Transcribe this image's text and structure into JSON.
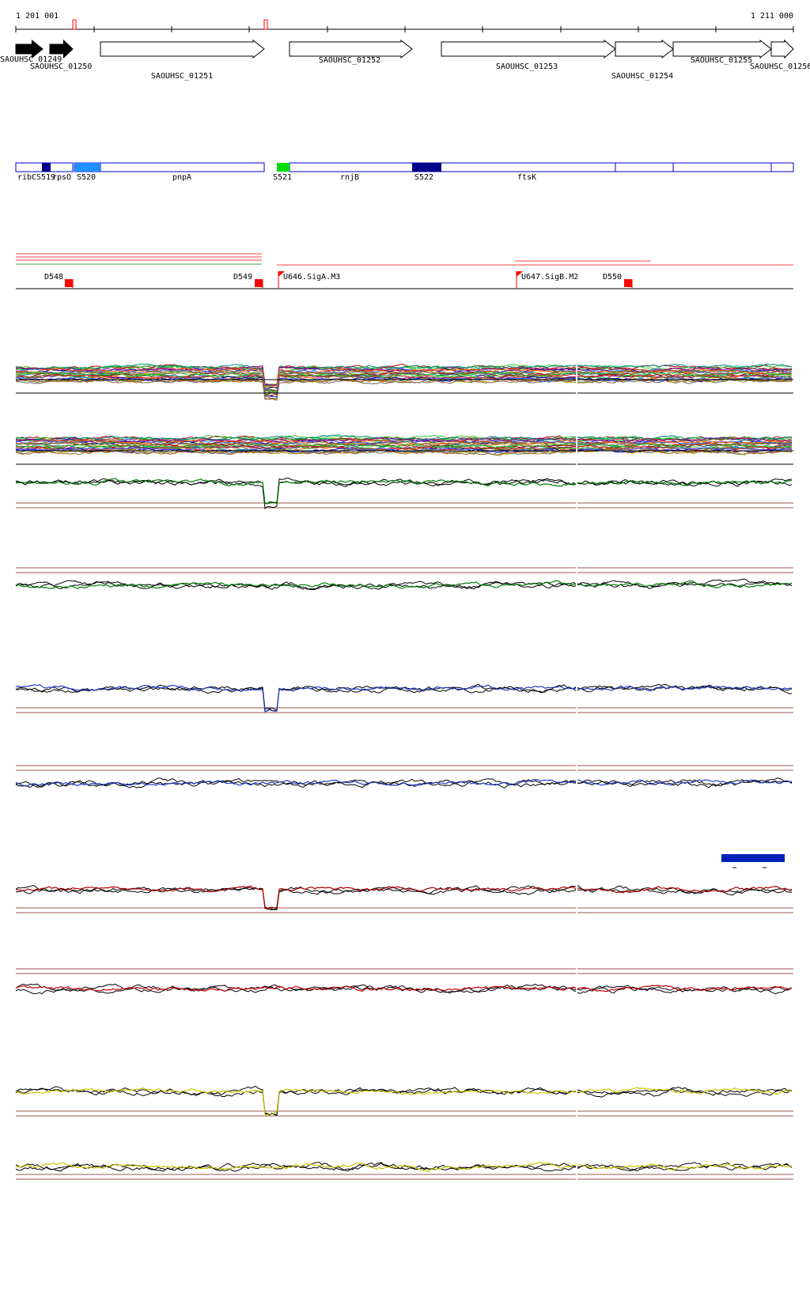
{
  "coordinates": {
    "start_label": "1 201 001",
    "end_label": "1 211 000"
  },
  "genes": [
    {
      "label": "SAOUHSC_01249",
      "style": "solid"
    },
    {
      "label": "SAOUHSC_01250",
      "style": "solid"
    },
    {
      "label": "SAOUHSC_01251",
      "style": "outline"
    },
    {
      "label": "SAOUHSC_01252",
      "style": "outline"
    },
    {
      "label": "SAOUHSC_01253",
      "style": "outline"
    },
    {
      "label": "SAOUHSC_01254",
      "style": "outline"
    },
    {
      "label": "SAOUHSC_01255",
      "style": "outline"
    },
    {
      "label": "SAOUHSC_01256",
      "style": "outline"
    }
  ],
  "annotations": [
    {
      "label": "ribC"
    },
    {
      "label": "S519"
    },
    {
      "label": "rpsO"
    },
    {
      "label": "S520"
    },
    {
      "label": "pnpA"
    },
    {
      "label": "S521"
    },
    {
      "label": "rnjB"
    },
    {
      "label": "S522"
    },
    {
      "label": "ftsK"
    }
  ],
  "segment_colors": {
    "S519": "#00008b",
    "S520": "#1e90ff",
    "S521": "#00dd00",
    "S522": "#00008b",
    "box_outline": "#0000cc"
  },
  "features": [
    {
      "label": "D548",
      "type": "down-flag"
    },
    {
      "label": "D549",
      "type": "down-flag"
    },
    {
      "label": "U646.SigA.M3",
      "type": "up-flag"
    },
    {
      "label": "U647.SigB.M2",
      "type": "up-flag"
    },
    {
      "label": "D550",
      "type": "down-flag"
    }
  ],
  "feature_color": "#ff0000",
  "tracks": [
    {
      "name": "many-conditions-1",
      "color": "multi"
    },
    {
      "name": "many-conditions-2",
      "color": "multi"
    },
    {
      "name": "green-plus-strand",
      "color": "#008000"
    },
    {
      "name": "green-minus-strand",
      "color": "#008000"
    },
    {
      "name": "blue-plus-strand",
      "color": "#1e3cc8"
    },
    {
      "name": "blue-minus-strand",
      "color": "#1e3cc8"
    },
    {
      "name": "red-plus-strand",
      "color": "#b40000"
    },
    {
      "name": "red-minus-strand",
      "color": "#cc0000"
    },
    {
      "name": "yellow-plus-strand",
      "color": "#c8c800"
    },
    {
      "name": "yellow-minus-strand",
      "color": "#c8c800"
    }
  ],
  "scale_legend": {
    "color": "#0022bb"
  }
}
